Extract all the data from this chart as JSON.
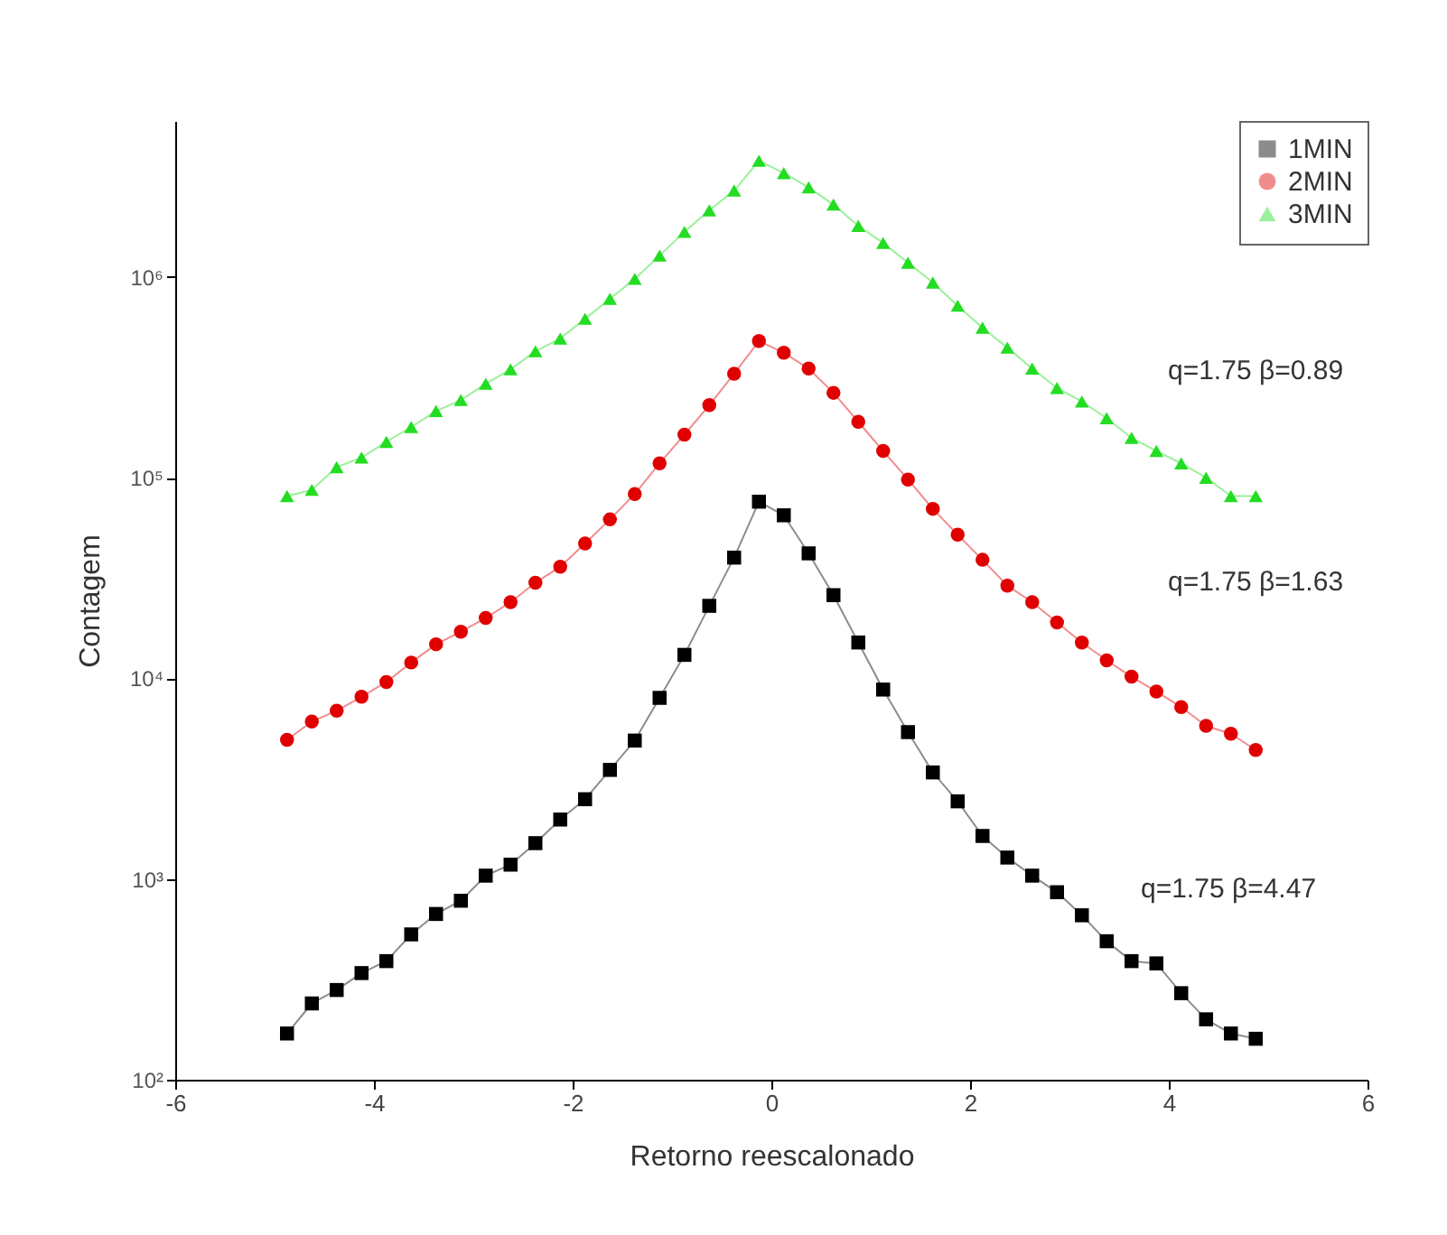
{
  "chart_data": {
    "type": "line",
    "xlabel": "Retorno reescalonado",
    "ylabel": "Contagem",
    "log": "y",
    "grid": false,
    "legend": "top right",
    "line_style": "solid",
    "x": [
      -4.875,
      -4.625,
      -4.375,
      -4.125,
      -3.875,
      -3.625,
      -3.375,
      -3.125,
      -2.875,
      -2.625,
      -2.375,
      -2.125,
      -1.875,
      -1.625,
      -1.375,
      -1.125,
      -0.875,
      -0.625,
      -0.375,
      -0.125,
      0.125,
      0.375,
      0.625,
      0.875,
      1.125,
      1.375,
      1.625,
      1.875,
      2.125,
      2.375,
      2.625,
      2.875,
      3.125,
      3.375,
      3.625,
      3.875,
      4.125,
      4.375,
      4.625,
      4.875
    ],
    "xlim": [
      -6,
      6
    ],
    "xticks": [
      -6,
      -4,
      -2,
      0,
      2,
      4,
      6
    ],
    "ylim": [
      100,
      6000000
    ],
    "yticks": [
      {
        "value": 100,
        "label": "10²"
      },
      {
        "value": 1000,
        "label": "10³"
      },
      {
        "value": 10000,
        "label": "10⁴"
      },
      {
        "value": 100000,
        "label": "10⁵"
      },
      {
        "value": 1000000,
        "label": "10⁶"
      }
    ],
    "series": [
      {
        "name": "1MIN",
        "color": "#000000",
        "marker": "square",
        "values": [
          170,
          240,
          280,
          340,
          390,
          530,
          670,
          780,
          1040,
          1180,
          1510,
          1980,
          2500,
          3500,
          4900,
          8000,
          13100,
          23000,
          40000,
          76000,
          65000,
          42000,
          26000,
          15100,
          8800,
          5400,
          3400,
          2440,
          1640,
          1280,
          1040,
          860,
          660,
          490,
          390,
          380,
          270,
          200,
          170,
          160
        ]
      },
      {
        "name": "2MIN",
        "color": "#e00000",
        "marker": "circle",
        "values": [
          4940,
          6100,
          6900,
          8100,
          9600,
          12000,
          14800,
          17100,
          20000,
          24000,
          30000,
          36000,
          47000,
          62000,
          83000,
          118000,
          164000,
          230000,
          330000,
          480000,
          420000,
          350000,
          265000,
          190000,
          136000,
          98000,
          70000,
          52000,
          39000,
          29000,
          24000,
          19000,
          15100,
          12300,
          10200,
          8600,
          7200,
          5800,
          5300,
          4400
        ]
      },
      {
        "name": "3MIN",
        "color": "#22dd22",
        "marker": "triangle",
        "values": [
          81000,
          87000,
          113000,
          126000,
          151000,
          179000,
          215000,
          244000,
          294000,
          347000,
          427000,
          494000,
          620000,
          780000,
          980000,
          1280000,
          1680000,
          2150000,
          2700000,
          3800000,
          3300000,
          2800000,
          2300000,
          1800000,
          1480000,
          1180000,
          940000,
          720000,
          560000,
          445000,
          350000,
          280000,
          240000,
          198000,
          158000,
          136000,
          118000,
          100000,
          81000,
          81000
        ]
      }
    ],
    "annotations": [
      "q=1.75 β=0.89",
      "q=1.75 β=1.63",
      "q=1.75 β=4.47"
    ]
  }
}
